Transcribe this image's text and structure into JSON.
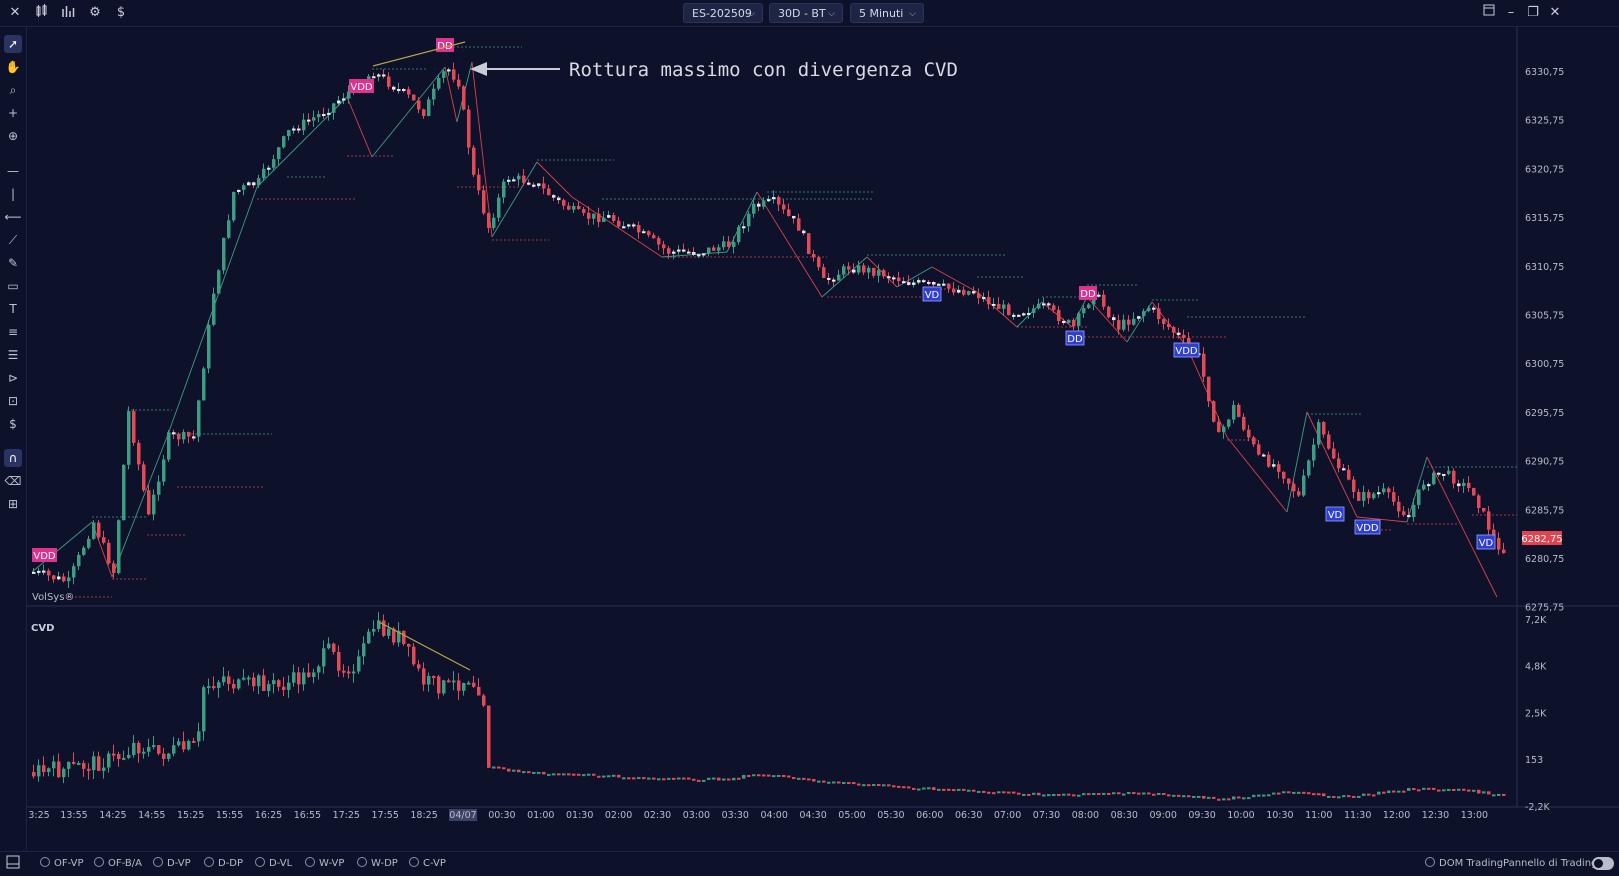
{
  "toolbar": {
    "close_icon": "✕",
    "symbol": "ES-202509",
    "range": "30D - BT",
    "timeframe": "5 Minuti"
  },
  "price_pane": {
    "indicator_label": "VolSys®",
    "annotation": "Rottura massimo con divergenza CVD",
    "price_axis": [
      "6330,75",
      "6325,75",
      "6320,75",
      "6315,75",
      "6310,75",
      "6305,75",
      "6300,75",
      "6295,75",
      "6290,75",
      "6285,75",
      "6280,75",
      "6275,75"
    ],
    "current_price": "6282,75",
    "current_price_color": "#e2434f",
    "up_color": "#3d9c83",
    "down_color": "#e24b55",
    "markers": [
      {
        "label": "VDD",
        "style": "magenta"
      },
      {
        "label": "VDD",
        "style": "magenta"
      },
      {
        "label": "DD",
        "style": "magenta"
      },
      {
        "label": "VD",
        "style": "blue"
      },
      {
        "label": "DD",
        "style": "magenta"
      },
      {
        "label": "DD",
        "style": "blue"
      },
      {
        "label": "VDD",
        "style": "blue"
      },
      {
        "label": "VD",
        "style": "blue"
      },
      {
        "label": "VDD",
        "style": "blue"
      },
      {
        "label": "VD",
        "style": "blue"
      }
    ]
  },
  "cvd_pane": {
    "label": "CVD",
    "axis": [
      "7,2K",
      "4,8K",
      "2,5K",
      "153",
      "-2,2K"
    ]
  },
  "time_axis": [
    "3:25",
    "13:55",
    "14:25",
    "14:55",
    "15:25",
    "15:55",
    "16:25",
    "16:55",
    "17:25",
    "17:55",
    "18:25",
    "04/07",
    "00:30",
    "01:00",
    "01:30",
    "02:00",
    "02:30",
    "03:00",
    "03:30",
    "04:00",
    "04:30",
    "05:00",
    "05:30",
    "06:00",
    "06:30",
    "07:00",
    "07:30",
    "08:00",
    "08:30",
    "09:00",
    "09:30",
    "10:00",
    "10:30",
    "11:00",
    "11:30",
    "12:00",
    "12:30",
    "13:00"
  ],
  "bottom_bar": {
    "studies": [
      "OF-VP",
      "OF-B/A",
      "D-VP",
      "D-DP",
      "D-VL",
      "W-VP",
      "W-DP",
      "C-VP"
    ],
    "dom_trading": "DOM Trading",
    "trading_panel": "Pannello di Trading"
  }
}
